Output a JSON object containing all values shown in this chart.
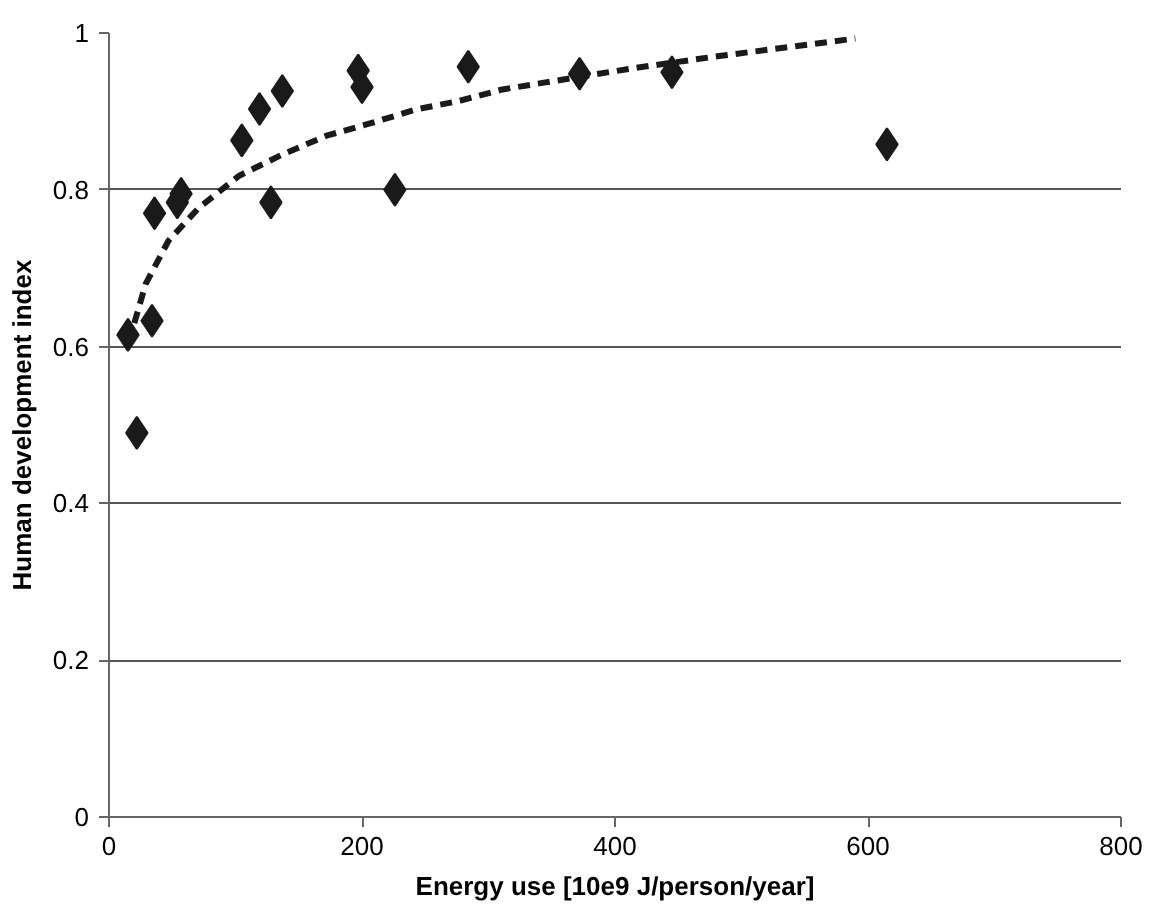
{
  "chart_data": {
    "type": "scatter",
    "xlabel": "Energy use [10e9 J/person/year]",
    "ylabel": "Human development index",
    "xlim": [
      0,
      800
    ],
    "xticks": [
      0,
      200,
      400,
      600,
      800
    ],
    "ylim": [
      0,
      1
    ],
    "yticks": [
      0,
      {
        "value": 0.2,
        "label": "0.2"
      },
      {
        "value": 0.4,
        "label": "0.4"
      },
      {
        "value": 0.6,
        "label": "0.6"
      },
      {
        "value": 0.8,
        "label": "0.8"
      },
      1
    ],
    "grid": "y",
    "series": [
      {
        "marker": "diamond",
        "color": "#1a1a1a",
        "x": [
          15,
          22,
          34,
          36,
          54,
          57,
          105,
          119,
          128,
          137,
          197,
          200,
          226,
          284,
          372,
          445,
          615
        ],
        "values": [
          0.615,
          0.49,
          0.633,
          0.77,
          0.784,
          0.795,
          0.863,
          0.903,
          0.784,
          0.926,
          0.952,
          0.931,
          0.8,
          0.957,
          0.948,
          0.95,
          0.858
        ]
      },
      {
        "type": "line",
        "line_style": "dashed",
        "color": "#1a1a1a",
        "x": [
          20,
          29,
          47,
          71,
          103,
          137,
          172,
          207,
          244,
          276,
          311,
          345,
          414,
          484,
          552,
          590
        ],
        "values": [
          0.63,
          0.68,
          0.735,
          0.777,
          0.818,
          0.845,
          0.869,
          0.885,
          0.903,
          0.913,
          0.928,
          0.937,
          0.955,
          0.971,
          0.985,
          0.993
        ]
      }
    ]
  }
}
